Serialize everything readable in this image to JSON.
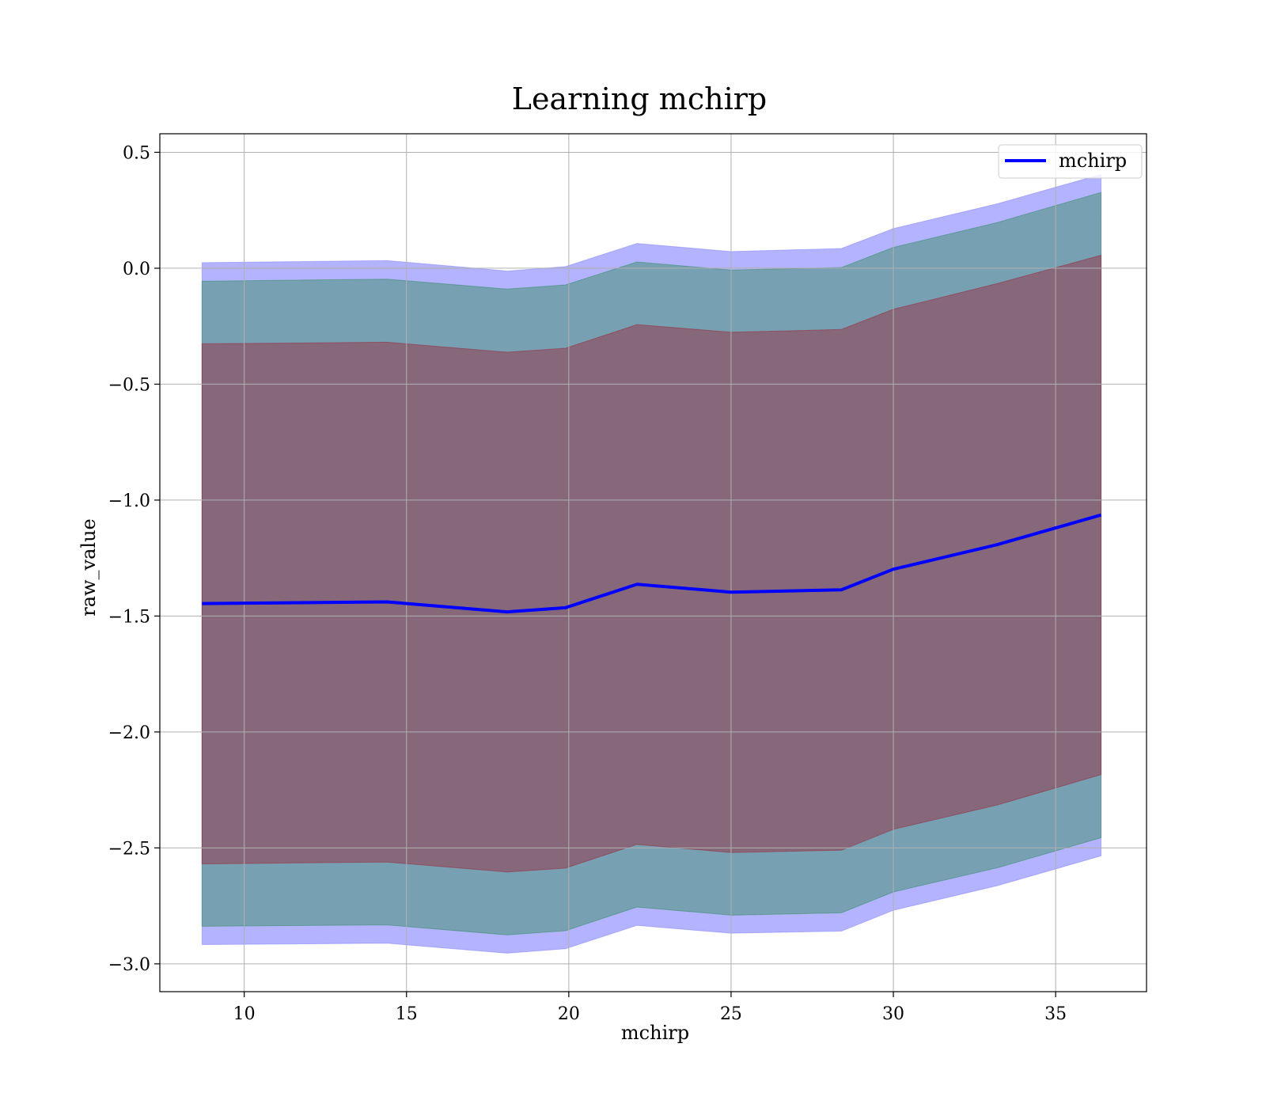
{
  "chart_data": {
    "type": "line",
    "title": "Learning mchirp",
    "xlabel": "mchirp",
    "ylabel": "raw_value",
    "xlim": [
      7.4,
      37.8
    ],
    "ylim": [
      -3.12,
      0.58
    ],
    "xticks": [
      10,
      15,
      20,
      25,
      30,
      35
    ],
    "yticks": [
      0.5,
      0.0,
      -0.5,
      -1.0,
      -1.5,
      -2.0,
      -2.5,
      -3.0
    ],
    "xtick_labels": [
      "10",
      "15",
      "20",
      "25",
      "30",
      "35"
    ],
    "ytick_labels": [
      "0.5",
      "0.0",
      "−0.5",
      "−1.0",
      "−1.5",
      "−2.0",
      "−2.5",
      "−3.0"
    ],
    "grid": true,
    "legend_position": "top-right",
    "x": [
      8.7,
      14.4,
      18.1,
      19.9,
      22.1,
      25.0,
      28.4,
      30.0,
      33.2,
      36.4
    ],
    "series": [
      {
        "name": "mchirp",
        "color": "#0000ff",
        "values": [
          -1.446,
          -1.439,
          -1.482,
          -1.464,
          -1.363,
          -1.397,
          -1.387,
          -1.298,
          -1.192,
          -1.064
        ]
      }
    ],
    "bands": [
      {
        "color": "#8080ff",
        "opacity": 0.6,
        "upper": [
          0.024,
          0.033,
          -0.012,
          0.007,
          0.107,
          0.072,
          0.085,
          0.171,
          0.278,
          0.405
        ],
        "lower": [
          -2.917,
          -2.911,
          -2.954,
          -2.935,
          -2.834,
          -2.868,
          -2.859,
          -2.769,
          -2.663,
          -2.534
        ]
      },
      {
        "color": "#2e8b57",
        "opacity": 0.45,
        "upper": [
          -0.056,
          -0.047,
          -0.09,
          -0.072,
          0.027,
          -0.008,
          0.003,
          0.09,
          0.197,
          0.327
        ],
        "lower": [
          -2.838,
          -2.832,
          -2.875,
          -2.857,
          -2.755,
          -2.79,
          -2.78,
          -2.69,
          -2.586,
          -2.456
        ]
      },
      {
        "color": "#9b2335",
        "opacity": 0.45,
        "upper": [
          -0.326,
          -0.319,
          -0.362,
          -0.345,
          -0.243,
          -0.276,
          -0.264,
          -0.177,
          -0.066,
          0.056
        ],
        "lower": [
          -2.569,
          -2.561,
          -2.604,
          -2.587,
          -2.485,
          -2.52,
          -2.51,
          -2.42,
          -2.315,
          -2.184
        ]
      }
    ]
  }
}
